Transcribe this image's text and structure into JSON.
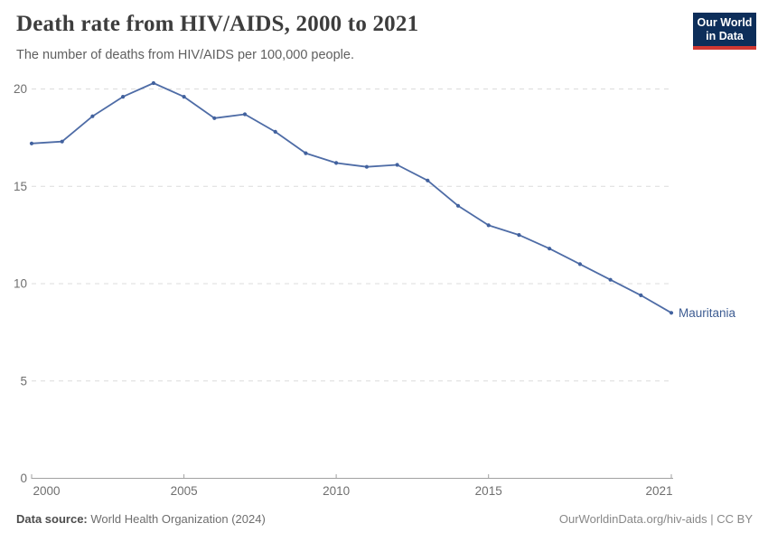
{
  "header": {
    "title": "Death rate from HIV/AIDS, 2000 to 2021",
    "subtitle": "The number of deaths from HIV/AIDS per 100,000 people."
  },
  "logo": {
    "line1": "Our World",
    "line2": "in Data",
    "bg_color": "#0d2e5a",
    "bar_color": "#d13832"
  },
  "chart_data": {
    "type": "line",
    "title": "Death rate from HIV/AIDS, 2000 to 2021",
    "xlabel": "",
    "ylabel": "",
    "xlim": [
      2000,
      2021
    ],
    "ylim": [
      0,
      20
    ],
    "xticks": [
      2000,
      2005,
      2010,
      2015,
      2021
    ],
    "yticks": [
      0,
      5,
      10,
      15,
      20
    ],
    "grid": "horizontal-dashed",
    "legend_position": "end-of-line-label",
    "entity_label": "Mauritania",
    "colors": {
      "line": "#4e6ca6",
      "marker": "#41619e",
      "label": "#3d5c92",
      "grid": "#dcdcdc",
      "axis": "#a1a1a1",
      "tick_text": "#6f6f6f"
    },
    "series": [
      {
        "name": "Mauritania",
        "x": [
          2000,
          2001,
          2002,
          2003,
          2004,
          2005,
          2006,
          2007,
          2008,
          2009,
          2010,
          2011,
          2012,
          2013,
          2014,
          2015,
          2016,
          2017,
          2018,
          2019,
          2020,
          2021
        ],
        "values": [
          17.2,
          17.3,
          18.6,
          19.6,
          20.3,
          19.6,
          18.5,
          18.7,
          17.8,
          16.7,
          16.2,
          16.0,
          16.1,
          15.3,
          14.0,
          13.0,
          12.5,
          11.8,
          11.0,
          10.2,
          9.4,
          8.5
        ]
      }
    ]
  },
  "footer": {
    "source_label": "Data source:",
    "source_value": "World Health Organization (2024)",
    "credit": "OurWorldinData.org/hiv-aids | CC BY"
  }
}
